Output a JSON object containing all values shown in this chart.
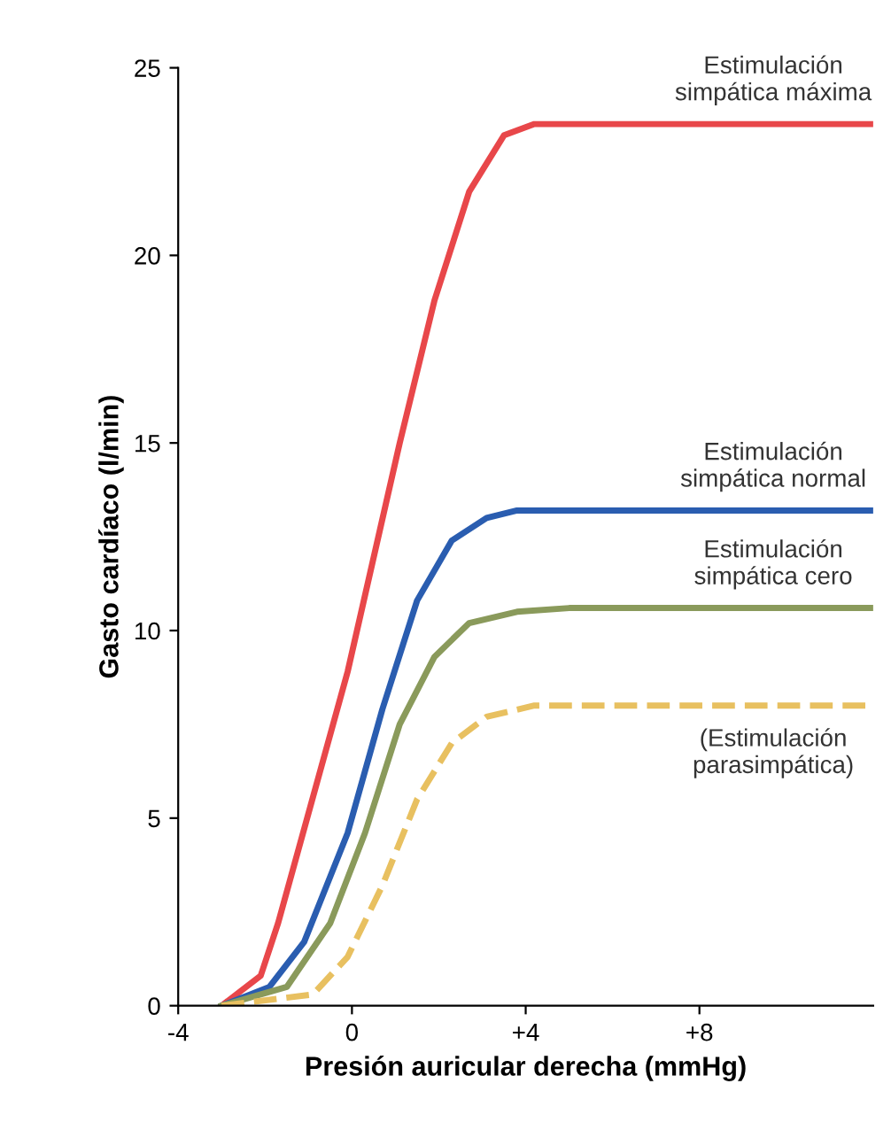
{
  "chart_data": {
    "type": "line",
    "xlabel": "Presión auricular derecha (mmHg)",
    "ylabel": "Gasto cardíaco (l/min)",
    "xlim": [
      -4,
      12
    ],
    "ylim": [
      0,
      25
    ],
    "xticks": [
      -4,
      0,
      {
        "value": 4,
        "label": "+4"
      },
      {
        "value": 8,
        "label": "+8"
      }
    ],
    "yticks": [
      0,
      5,
      10,
      15,
      20,
      25
    ],
    "grid": false,
    "legend": false,
    "marker": "none",
    "series": [
      {
        "name": "Estimulación\nsimpática máxima",
        "color": "#e8474a",
        "line_style": "solid",
        "x": [
          -3,
          -2.1,
          -1.7,
          -0.1,
          1.1,
          1.9,
          2.7,
          3.5,
          4.2,
          12
        ],
        "values": [
          0,
          0.8,
          2.2,
          8.9,
          15,
          18.8,
          21.7,
          23.2,
          23.5,
          23.5
        ]
      },
      {
        "name": "Estimulación\nsimpática normal",
        "color": "#2a5db0",
        "line_style": "solid",
        "x": [
          -3,
          -1.9,
          -1.1,
          -0.1,
          0.7,
          1.5,
          2.3,
          3.1,
          3.8,
          12
        ],
        "values": [
          0,
          0.5,
          1.7,
          4.6,
          7.9,
          10.8,
          12.4,
          13.0,
          13.2,
          13.2
        ]
      },
      {
        "name": "Estimulación\nsimpática cero",
        "color": "#8a9a5b",
        "line_style": "solid",
        "x": [
          -3,
          -1.5,
          -0.5,
          0.3,
          1.1,
          1.9,
          2.7,
          3.8,
          5.0,
          12
        ],
        "values": [
          0,
          0.5,
          2.2,
          4.6,
          7.5,
          9.3,
          10.2,
          10.5,
          10.6,
          10.6
        ]
      },
      {
        "name": "(Estimulación\nparasimpática)",
        "color": "#e8c060",
        "line_style": "dashed",
        "x": [
          -3,
          -0.9,
          -0.1,
          0.7,
          1.5,
          2.3,
          3.1,
          4.2,
          12
        ],
        "values": [
          0,
          0.3,
          1.3,
          3.2,
          5.5,
          7.0,
          7.7,
          8.0,
          8.0
        ]
      }
    ]
  }
}
